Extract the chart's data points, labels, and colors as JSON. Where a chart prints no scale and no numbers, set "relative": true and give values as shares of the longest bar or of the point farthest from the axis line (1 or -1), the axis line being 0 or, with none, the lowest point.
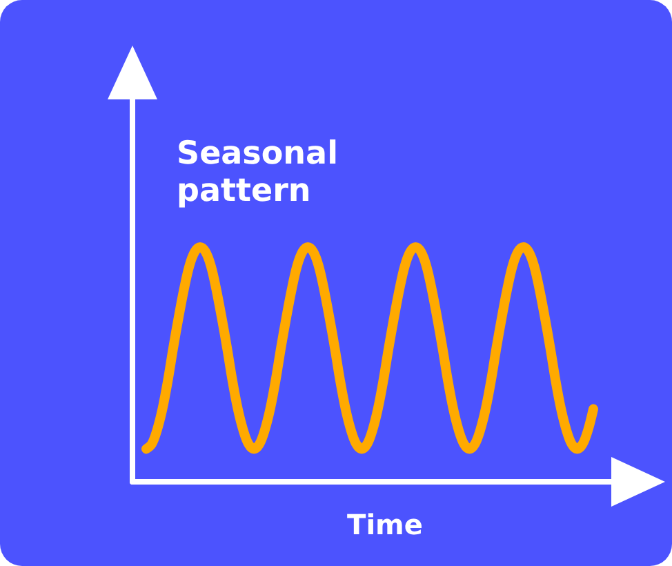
{
  "chart_data": {
    "type": "line",
    "title": "Seasonal pattern",
    "xlabel": "Time",
    "relative": true,
    "marker": "none",
    "line_style": "solid",
    "categories": [
      null,
      null,
      null,
      null,
      null,
      null,
      null,
      null,
      null,
      null,
      null,
      null,
      null,
      null,
      null,
      null,
      null,
      null,
      null,
      null,
      null,
      null,
      null,
      null,
      null,
      null,
      null,
      null,
      null,
      null,
      null,
      null,
      null,
      null,
      null,
      null,
      null,
      null,
      null,
      null,
      null,
      null,
      null,
      null,
      null,
      null,
      null,
      null,
      null,
      null,
      null,
      null,
      null,
      null,
      null,
      null,
      null,
      null,
      null,
      null,
      null,
      null,
      null,
      null,
      null,
      null,
      null,
      null,
      null,
      null,
      null,
      null,
      null,
      null,
      null,
      null,
      null,
      null,
      null,
      null,
      null,
      null,
      null,
      null
    ],
    "series": [
      {
        "color": "#ffaa00",
        "values": [
          0.14,
          0.16,
          0.22,
          0.31,
          0.43,
          0.57,
          0.7,
          0.82,
          0.92,
          0.98,
          1,
          0.98,
          0.92,
          0.82,
          0.7,
          0.57,
          0.43,
          0.31,
          0.22,
          0.16,
          0.14,
          0.16,
          0.22,
          0.31,
          0.43,
          0.57,
          0.7,
          0.82,
          0.92,
          0.98,
          1,
          0.98,
          0.92,
          0.82,
          0.7,
          0.57,
          0.43,
          0.31,
          0.22,
          0.16,
          0.14,
          0.16,
          0.22,
          0.31,
          0.43,
          0.57,
          0.7,
          0.82,
          0.92,
          0.98,
          1,
          0.98,
          0.92,
          0.82,
          0.7,
          0.57,
          0.43,
          0.31,
          0.22,
          0.16,
          0.14,
          0.16,
          0.22,
          0.31,
          0.43,
          0.57,
          0.7,
          0.82,
          0.92,
          0.98,
          1,
          0.98,
          0.92,
          0.82,
          0.7,
          0.57,
          0.43,
          0.31,
          0.22,
          0.16,
          0.14,
          0.16,
          0.22,
          0.31
        ]
      }
    ]
  }
}
